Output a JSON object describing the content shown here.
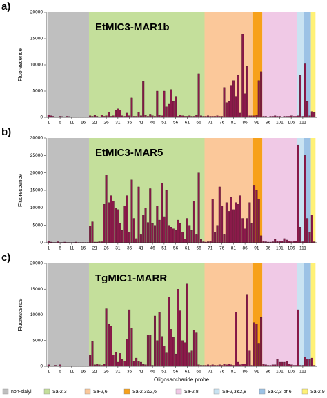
{
  "chart_data": [
    {
      "type": "bar",
      "label": "a)",
      "title": "EtMIC3-MAR1b",
      "ylabel": "Fluorescence",
      "color": "#8b1a4a",
      "x": [
        1,
        2,
        3,
        4,
        5,
        6,
        7,
        8,
        9,
        10,
        11,
        12,
        13,
        14,
        15,
        16,
        17,
        18,
        19,
        20,
        21,
        22,
        23,
        24,
        25,
        26,
        27,
        28,
        29,
        30,
        31,
        32,
        33,
        34,
        35,
        36,
        37,
        38,
        39,
        40,
        41,
        42,
        43,
        44,
        45,
        46,
        47,
        48,
        49,
        50,
        51,
        52,
        53,
        54,
        55,
        56,
        57,
        58,
        59,
        60,
        61,
        62,
        63,
        64,
        65,
        66,
        67,
        68,
        69,
        70,
        71,
        72,
        73,
        74,
        75,
        76,
        77,
        78,
        79,
        80,
        81,
        82,
        83,
        84,
        85,
        86,
        87,
        88,
        89,
        90,
        91,
        92,
        93,
        94,
        95,
        96,
        97,
        98,
        99,
        100,
        101,
        102,
        103,
        104,
        105,
        106,
        107,
        108,
        109,
        110,
        111,
        112,
        113,
        114,
        115,
        116
      ],
      "values": [
        500,
        300,
        200,
        100,
        100,
        200,
        150,
        100,
        200,
        150,
        100,
        100,
        50,
        100,
        100,
        100,
        50,
        100,
        300,
        200,
        400,
        200,
        100,
        500,
        200,
        300,
        1000,
        200,
        300,
        1300,
        1600,
        1400,
        300,
        200,
        800,
        300,
        3700,
        200,
        200,
        1000,
        300,
        6800,
        500,
        200,
        600,
        300,
        200,
        5000,
        400,
        300,
        5000,
        2000,
        2500,
        5300,
        3000,
        4000,
        200,
        500,
        300,
        200,
        200,
        300,
        200,
        200,
        400,
        8300,
        300,
        200,
        200,
        300,
        200,
        200,
        200,
        300,
        200,
        200,
        5700,
        2800,
        3000,
        6100,
        7000,
        4000,
        8000,
        800,
        15800,
        4500,
        9700,
        300,
        300,
        300,
        400,
        7000,
        8700,
        200,
        200,
        100,
        200,
        200,
        300,
        200,
        200,
        100,
        200,
        200,
        200,
        300,
        200,
        200,
        300,
        8000,
        200,
        10200,
        3000,
        300,
        1100,
        900
      ],
      "xlim": [
        0,
        117
      ],
      "xticks": [
        1,
        6,
        11,
        16,
        21,
        26,
        31,
        36,
        41,
        46,
        51,
        56,
        61,
        66,
        71,
        76,
        81,
        86,
        91,
        96,
        101,
        106,
        111
      ],
      "ylim": [
        0,
        20000
      ],
      "yticks": [
        0,
        5000,
        10000,
        15000,
        20000
      ]
    },
    {
      "type": "bar",
      "label": "b)",
      "title": "EtMIC3-MAR5",
      "ylabel": "Fluorescence",
      "color": "#8b1a4a",
      "x": [
        1,
        2,
        3,
        4,
        5,
        6,
        7,
        8,
        9,
        10,
        11,
        12,
        13,
        14,
        15,
        16,
        17,
        18,
        19,
        20,
        21,
        22,
        23,
        24,
        25,
        26,
        27,
        28,
        29,
        30,
        31,
        32,
        33,
        34,
        35,
        36,
        37,
        38,
        39,
        40,
        41,
        42,
        43,
        44,
        45,
        46,
        47,
        48,
        49,
        50,
        51,
        52,
        53,
        54,
        55,
        56,
        57,
        58,
        59,
        60,
        61,
        62,
        63,
        64,
        65,
        66,
        67,
        68,
        69,
        70,
        71,
        72,
        73,
        74,
        75,
        76,
        77,
        78,
        79,
        80,
        81,
        82,
        83,
        84,
        85,
        86,
        87,
        88,
        89,
        90,
        91,
        92,
        93,
        94,
        95,
        96,
        97,
        98,
        99,
        100,
        101,
        102,
        103,
        104,
        105,
        106,
        107,
        108,
        109,
        110,
        111,
        112,
        113,
        114,
        115,
        116
      ],
      "values": [
        400,
        200,
        100,
        100,
        300,
        100,
        100,
        200,
        100,
        100,
        100,
        100,
        200,
        100,
        100,
        100,
        100,
        100,
        4800,
        6000,
        200,
        200,
        300,
        300,
        11000,
        19500,
        11500,
        13500,
        12000,
        10000,
        9500,
        5500,
        3500,
        10500,
        13500,
        3000,
        18000,
        7000,
        1200,
        16000,
        2500,
        8000,
        10000,
        5800,
        15500,
        5500,
        5000,
        10500,
        6500,
        17000,
        7500,
        15000,
        5000,
        4500,
        4000,
        3500,
        6500,
        5500,
        3000,
        1000,
        7000,
        5000,
        3500,
        12000,
        2500,
        20000,
        1000,
        300,
        200,
        300,
        500,
        12500,
        3000,
        5000,
        16000,
        10500,
        2500,
        11500,
        9000,
        13000,
        9500,
        11500,
        11000,
        13500,
        7000,
        4000,
        7000,
        11500,
        5500,
        16500,
        15000,
        12500,
        2000,
        500,
        300,
        200,
        200,
        300,
        1000,
        500,
        500,
        500,
        1200,
        800,
        500,
        300,
        500,
        400,
        28000,
        4500,
        300,
        25000,
        7000,
        3000,
        8000,
        300
      ],
      "xlim": [
        0,
        117
      ],
      "xticks": [
        1,
        6,
        11,
        16,
        21,
        26,
        31,
        36,
        41,
        46,
        51,
        56,
        61,
        66,
        71,
        76,
        81,
        86,
        91,
        96,
        101,
        106,
        111
      ],
      "ylim": [
        0,
        30000
      ],
      "yticks": [
        0,
        5000,
        10000,
        15000,
        20000,
        25000,
        30000
      ]
    },
    {
      "type": "bar",
      "label": "c)",
      "title": "TgMIC1-MARR",
      "ylabel": "Fluorescence",
      "xlabel": "Oligosaccharide probe",
      "color": "#8b1a4a",
      "x": [
        1,
        2,
        3,
        4,
        5,
        6,
        7,
        8,
        9,
        10,
        11,
        12,
        13,
        14,
        15,
        16,
        17,
        18,
        19,
        20,
        21,
        22,
        23,
        24,
        25,
        26,
        27,
        28,
        29,
        30,
        31,
        32,
        33,
        34,
        35,
        36,
        37,
        38,
        39,
        40,
        41,
        42,
        43,
        44,
        45,
        46,
        47,
        48,
        49,
        50,
        51,
        52,
        53,
        54,
        55,
        56,
        57,
        58,
        59,
        60,
        61,
        62,
        63,
        64,
        65,
        66,
        67,
        68,
        69,
        70,
        71,
        72,
        73,
        74,
        75,
        76,
        77,
        78,
        79,
        80,
        81,
        82,
        83,
        84,
        85,
        86,
        87,
        88,
        89,
        90,
        91,
        92,
        93,
        94,
        95,
        96,
        97,
        98,
        99,
        100,
        101,
        102,
        103,
        104,
        105,
        106,
        107,
        108,
        109,
        110,
        111,
        112,
        113,
        114,
        115,
        116
      ],
      "values": [
        300,
        100,
        100,
        200,
        100,
        300,
        100,
        100,
        100,
        100,
        100,
        100,
        100,
        100,
        100,
        100,
        100,
        100,
        2200,
        4800,
        300,
        500,
        300,
        200,
        400,
        11200,
        8200,
        7800,
        2200,
        2700,
        800,
        2500,
        1300,
        1000,
        5300,
        11000,
        7400,
        1000,
        1600,
        1000,
        800,
        400,
        300,
        6100,
        6100,
        200,
        9800,
        5000,
        10500,
        5800,
        4000,
        2600,
        13500,
        7200,
        5600,
        2400,
        15000,
        10800,
        5000,
        4600,
        16000,
        2600,
        3000,
        7000,
        6500,
        300,
        200,
        200,
        200,
        300,
        200,
        300,
        200,
        200,
        300,
        200,
        500,
        300,
        500,
        300,
        200,
        10500,
        800,
        300,
        500,
        500,
        14000,
        3000,
        200,
        8500,
        8300,
        4500,
        9500,
        500,
        300,
        200,
        200,
        300,
        300,
        1300,
        800,
        800,
        800,
        1000,
        500,
        300,
        200,
        200,
        11000,
        200,
        200,
        1800,
        1400,
        1300,
        1600,
        200
      ],
      "xlim": [
        0,
        117
      ],
      "xticks": [
        1,
        6,
        11,
        16,
        21,
        26,
        31,
        36,
        41,
        46,
        51,
        56,
        61,
        66,
        71,
        76,
        81,
        86,
        91,
        96,
        101,
        106,
        111
      ],
      "ylim": [
        0,
        20000
      ],
      "yticks": [
        0,
        5000,
        10000,
        15000,
        20000
      ]
    }
  ],
  "legend": [
    {
      "name": "non-sialyl",
      "color": "#bfbfbf",
      "from": 1,
      "to": 18
    },
    {
      "name": "Sa-2,3",
      "color": "#c4df9b",
      "from": 19,
      "to": 68
    },
    {
      "name": "Sa-2,6",
      "color": "#fbc89a",
      "from": 69,
      "to": 89
    },
    {
      "name": "Sa-2,3&2,6",
      "color": "#f7a11a",
      "from": 90,
      "to": 93
    },
    {
      "name": "Sa-2,8",
      "color": "#f0c9e6",
      "from": 94,
      "to": 108
    },
    {
      "name": "Sa-2,3&2,8",
      "color": "#c9e3f2",
      "from": 109,
      "to": 111
    },
    {
      "name": "Sa-2,3 or 6",
      "color": "#9cc2e5",
      "from": 112,
      "to": 114
    },
    {
      "name": "Sa-2,9",
      "color": "#fff176",
      "from": 115,
      "to": 116
    }
  ]
}
